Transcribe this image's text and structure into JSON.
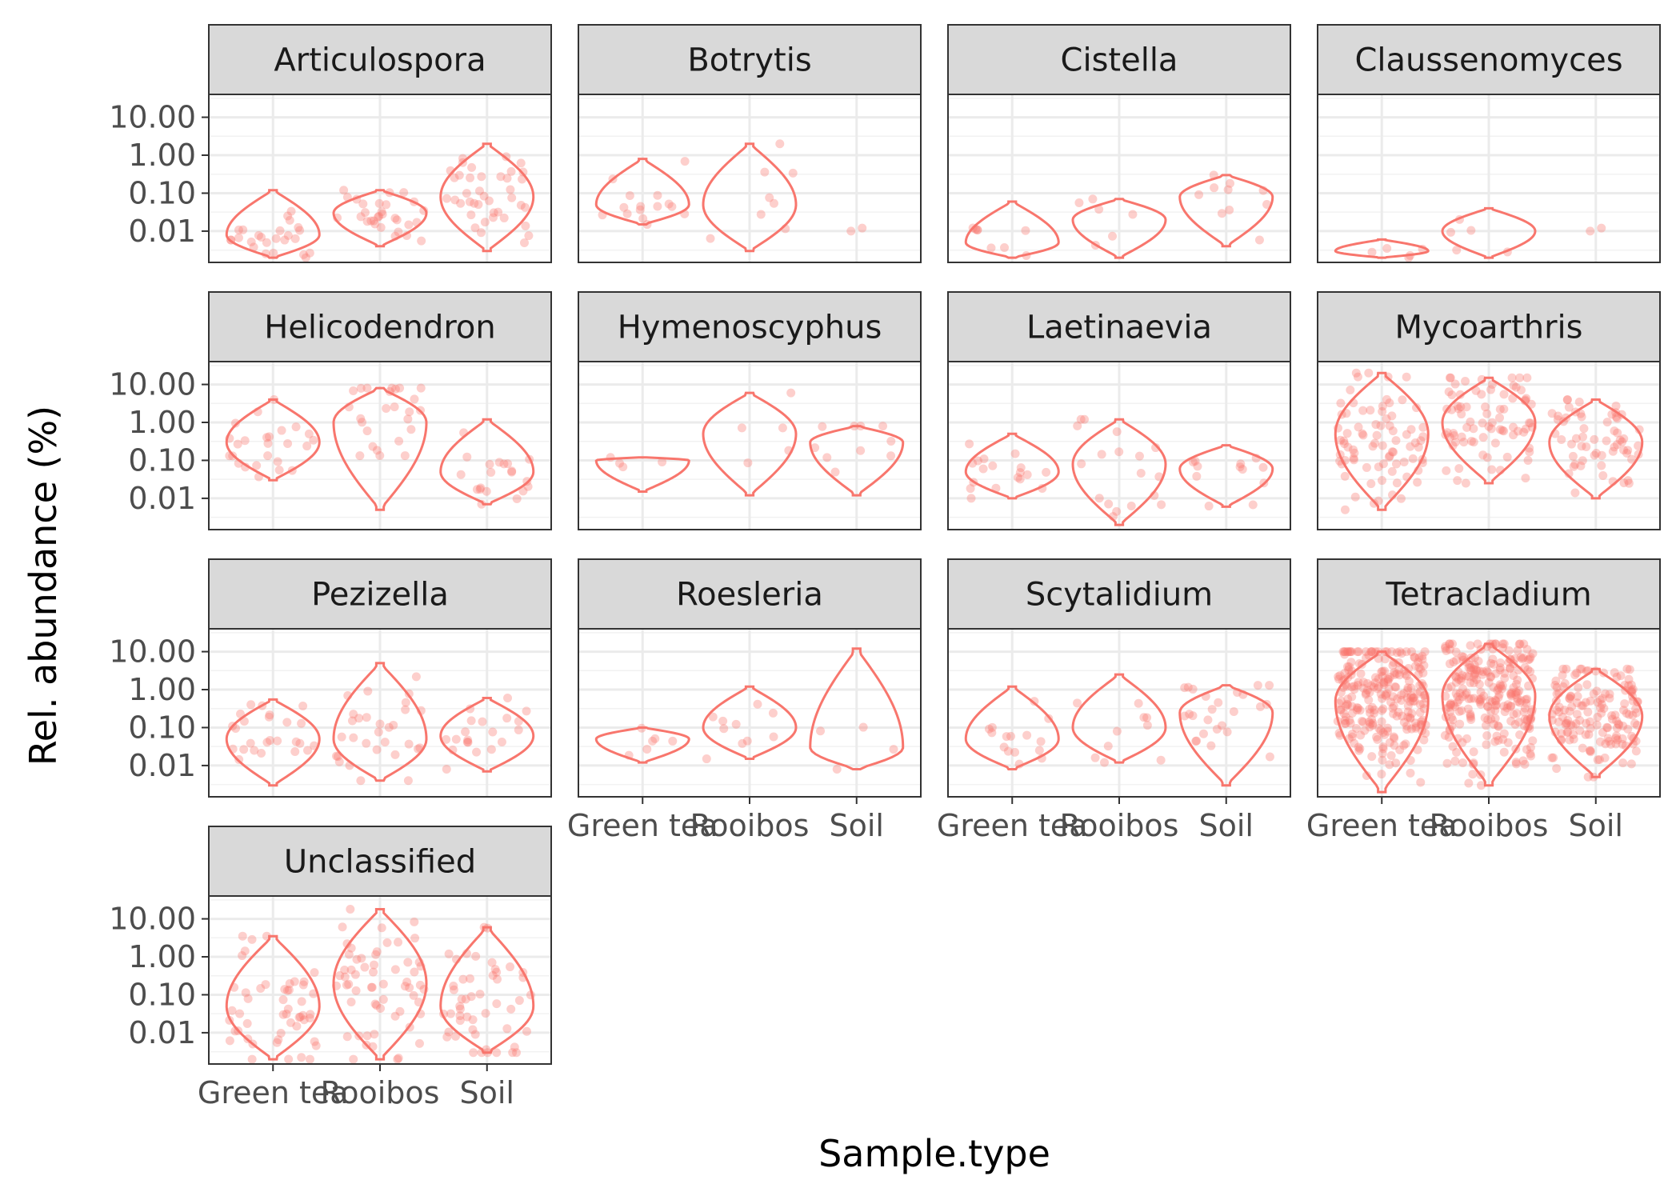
{
  "chart_data": {
    "type": "violin",
    "xlabel": "Sample.type",
    "ylabel": "Rel. abundance (%)",
    "y_scale": "log10",
    "y_ticks": [
      "10.00",
      "1.00",
      "0.10",
      "0.01"
    ],
    "y_tick_values": [
      10,
      1,
      0.1,
      0.01
    ],
    "categories": [
      "Green tea",
      "Rooibos",
      "Soil"
    ],
    "grid": true,
    "colors": {
      "violin": "#F8766D",
      "point": "#F8766D",
      "strip_fill": "#D9D9D9",
      "grid": "#EBEBEB",
      "border": "#333333",
      "text": "#4D4D4D"
    },
    "panels": [
      {
        "name": "Articulospora",
        "groups": [
          {
            "category": "Green tea",
            "min": 0.002,
            "max": 0.12,
            "mode": 0.008,
            "n": 25
          },
          {
            "category": "Rooibos",
            "min": 0.004,
            "max": 0.12,
            "mode": 0.03,
            "n": 30
          },
          {
            "category": "Soil",
            "min": 0.003,
            "max": 2.0,
            "mode": 0.08,
            "n": 40
          }
        ]
      },
      {
        "name": "Botrytis",
        "groups": [
          {
            "category": "Green tea",
            "min": 0.015,
            "max": 0.8,
            "mode": 0.05,
            "n": 15
          },
          {
            "category": "Rooibos",
            "min": 0.003,
            "max": 2.0,
            "mode": 0.05,
            "n": 8
          },
          {
            "category": "Soil",
            "min": null,
            "max": null,
            "mode": null,
            "n": 2
          }
        ]
      },
      {
        "name": "Cistella",
        "groups": [
          {
            "category": "Green tea",
            "min": 0.002,
            "max": 0.06,
            "mode": 0.005,
            "n": 8
          },
          {
            "category": "Rooibos",
            "min": 0.002,
            "max": 0.07,
            "mode": 0.02,
            "n": 6
          },
          {
            "category": "Soil",
            "min": 0.004,
            "max": 0.3,
            "mode": 0.08,
            "n": 10
          }
        ]
      },
      {
        "name": "Claussenomyces",
        "groups": [
          {
            "category": "Green tea",
            "min": 0.002,
            "max": 0.006,
            "mode": 0.003,
            "n": 5
          },
          {
            "category": "Rooibos",
            "min": 0.002,
            "max": 0.04,
            "mode": 0.01,
            "n": 5
          },
          {
            "category": "Soil",
            "min": null,
            "max": null,
            "mode": null,
            "n": 2
          }
        ]
      },
      {
        "name": "Helicodendron",
        "groups": [
          {
            "category": "Green tea",
            "min": 0.03,
            "max": 4.0,
            "mode": 0.3,
            "n": 25
          },
          {
            "category": "Rooibos",
            "min": 0.005,
            "max": 8.0,
            "mode": 1.0,
            "n": 25
          },
          {
            "category": "Soil",
            "min": 0.007,
            "max": 1.2,
            "mode": 0.05,
            "n": 20
          }
        ]
      },
      {
        "name": "Hymenoscyphus",
        "groups": [
          {
            "category": "Green tea",
            "min": 0.015,
            "max": 0.12,
            "mode": 0.1,
            "n": 4
          },
          {
            "category": "Rooibos",
            "min": 0.012,
            "max": 6.0,
            "mode": 0.5,
            "n": 5
          },
          {
            "category": "Soil",
            "min": 0.012,
            "max": 0.8,
            "mode": 0.3,
            "n": 10
          }
        ]
      },
      {
        "name": "Laetinaevia",
        "groups": [
          {
            "category": "Green tea",
            "min": 0.01,
            "max": 0.5,
            "mode": 0.05,
            "n": 18
          },
          {
            "category": "Rooibos",
            "min": 0.002,
            "max": 1.2,
            "mode": 0.08,
            "n": 18
          },
          {
            "category": "Soil",
            "min": 0.006,
            "max": 0.25,
            "mode": 0.06,
            "n": 12
          }
        ]
      },
      {
        "name": "Mycoarthris",
        "groups": [
          {
            "category": "Green tea",
            "min": 0.005,
            "max": 20,
            "mode": 0.5,
            "n": 80
          },
          {
            "category": "Rooibos",
            "min": 0.025,
            "max": 15,
            "mode": 1.0,
            "n": 80
          },
          {
            "category": "Soil",
            "min": 0.01,
            "max": 4.0,
            "mode": 0.3,
            "n": 60
          }
        ]
      },
      {
        "name": "Pezizella",
        "groups": [
          {
            "category": "Green tea",
            "min": 0.003,
            "max": 0.55,
            "mode": 0.05,
            "n": 25
          },
          {
            "category": "Rooibos",
            "min": 0.004,
            "max": 5.0,
            "mode": 0.05,
            "n": 30
          },
          {
            "category": "Soil",
            "min": 0.007,
            "max": 0.6,
            "mode": 0.06,
            "n": 20
          }
        ]
      },
      {
        "name": "Roesleria",
        "groups": [
          {
            "category": "Green tea",
            "min": 0.012,
            "max": 0.1,
            "mode": 0.05,
            "n": 6
          },
          {
            "category": "Rooibos",
            "min": 0.015,
            "max": 1.2,
            "mode": 0.1,
            "n": 10
          },
          {
            "category": "Soil",
            "min": 0.008,
            "max": 12,
            "mode": 0.03,
            "n": 4
          }
        ]
      },
      {
        "name": "Scytalidium",
        "groups": [
          {
            "category": "Green tea",
            "min": 0.008,
            "max": 1.2,
            "mode": 0.05,
            "n": 15
          },
          {
            "category": "Rooibos",
            "min": 0.012,
            "max": 2.5,
            "mode": 0.1,
            "n": 10
          },
          {
            "category": "Soil",
            "min": 0.003,
            "max": 1.3,
            "mode": 0.25,
            "n": 25
          }
        ]
      },
      {
        "name": "Tetracladium",
        "groups": [
          {
            "category": "Green tea",
            "min": 0.002,
            "max": 10,
            "mode": 0.5,
            "n": 250
          },
          {
            "category": "Rooibos",
            "min": 0.003,
            "max": 16,
            "mode": 0.7,
            "n": 250
          },
          {
            "category": "Soil",
            "min": 0.005,
            "max": 3.5,
            "mode": 0.2,
            "n": 150
          }
        ]
      },
      {
        "name": "Unclassified",
        "groups": [
          {
            "category": "Green tea",
            "min": 0.002,
            "max": 3.5,
            "mode": 0.05,
            "n": 50
          },
          {
            "category": "Rooibos",
            "min": 0.002,
            "max": 18,
            "mode": 0.2,
            "n": 60
          },
          {
            "category": "Soil",
            "min": 0.003,
            "max": 6.0,
            "mode": 0.05,
            "n": 50
          }
        ]
      }
    ]
  }
}
